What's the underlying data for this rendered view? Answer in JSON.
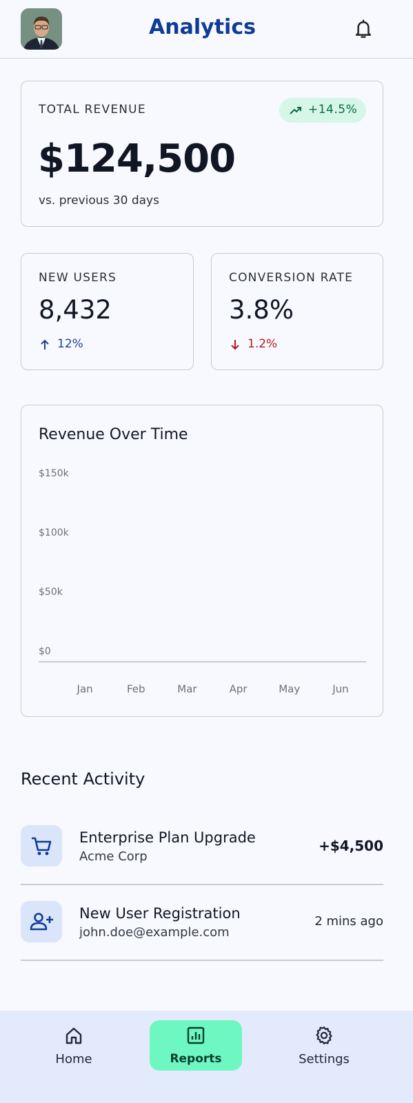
{
  "header": {
    "title": "Analytics"
  },
  "revenue_card": {
    "label": "TOTAL REVENUE",
    "change": "+14.5%",
    "value": "$124,500",
    "note": "vs. previous 30 days"
  },
  "metrics": [
    {
      "label": "NEW USERS",
      "value": "8,432",
      "change": "12%"
    },
    {
      "label": "CONVERSION RATE",
      "value": "3.8%",
      "change": "1.2%"
    }
  ],
  "chart_data": {
    "type": "bar",
    "title": "Revenue Over Time",
    "categories": [
      "Jan",
      "Feb",
      "Mar",
      "Apr",
      "May",
      "Jun"
    ],
    "ylim": [
      0,
      150000
    ],
    "yticks": [
      {
        "value": 0,
        "label": "$0"
      },
      {
        "value": 50000,
        "label": "$50k"
      },
      {
        "value": 100000,
        "label": "$100k"
      },
      {
        "value": 150000,
        "label": "$150k"
      }
    ]
  },
  "activity": {
    "title": "Recent Activity",
    "items": [
      {
        "title": "Enterprise Plan Upgrade",
        "subtitle": "Acme Corp",
        "meta": "+$4,500"
      },
      {
        "title": "New User Registration",
        "subtitle": "john.doe@example.com",
        "meta": "2 mins ago"
      }
    ]
  },
  "nav": [
    "Home",
    "Reports",
    "Settings"
  ]
}
